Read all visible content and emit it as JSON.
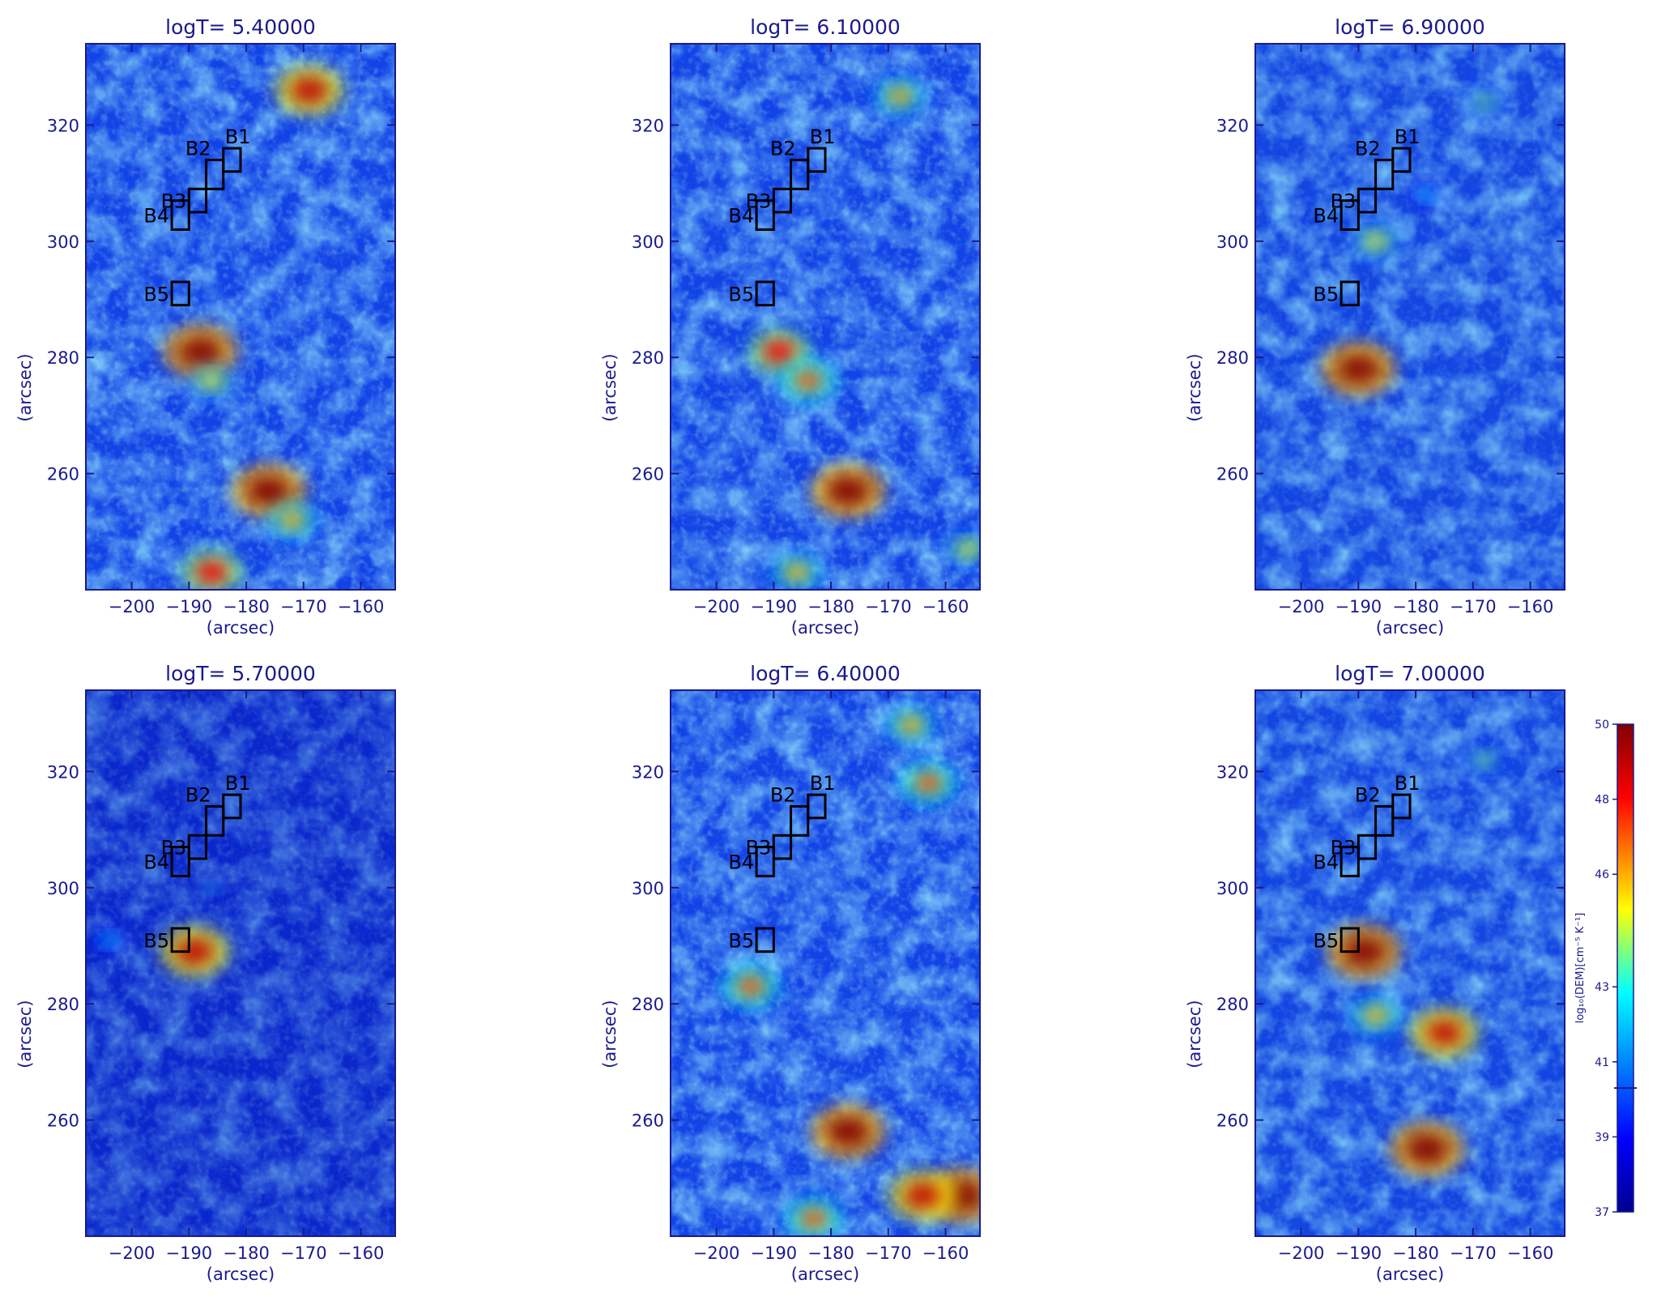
{
  "chart_data": [
    {
      "type": "heatmap",
      "title": "logT= 5.40000",
      "xlabel": "(arcsec)",
      "ylabel": "(arcsec)",
      "xlim": [
        -208,
        -154
      ],
      "ylim": [
        240,
        334
      ],
      "xticks": [
        -200,
        -190,
        -180,
        -170,
        -160
      ],
      "yticks": [
        260,
        280,
        300,
        320
      ],
      "level": "high",
      "hotspots": [
        {
          "x": -188,
          "y": 281,
          "value": 50
        },
        {
          "x": -176,
          "y": 257,
          "value": 50
        },
        {
          "x": -169,
          "y": 326,
          "value": 49
        },
        {
          "x": -186,
          "y": 243,
          "value": 48
        },
        {
          "x": -172,
          "y": 252,
          "value": 46
        },
        {
          "x": -186,
          "y": 276,
          "value": 45
        }
      ]
    },
    {
      "type": "heatmap",
      "title": "logT= 6.10000",
      "xlabel": "(arcsec)",
      "ylabel": "(arcsec)",
      "xlim": [
        -208,
        -154
      ],
      "ylim": [
        240,
        334
      ],
      "xticks": [
        -200,
        -190,
        -180,
        -170,
        -160
      ],
      "yticks": [
        260,
        280,
        300,
        320
      ],
      "level": "high",
      "hotspots": [
        {
          "x": -177,
          "y": 257,
          "value": 50
        },
        {
          "x": -189,
          "y": 281,
          "value": 48
        },
        {
          "x": -184,
          "y": 276,
          "value": 47
        },
        {
          "x": -168,
          "y": 325,
          "value": 46
        },
        {
          "x": -186,
          "y": 243,
          "value": 46
        },
        {
          "x": -156,
          "y": 247,
          "value": 45
        }
      ]
    },
    {
      "type": "heatmap",
      "title": "logT= 6.90000",
      "xlabel": "(arcsec)",
      "ylabel": "(arcsec)",
      "xlim": [
        -208,
        -154
      ],
      "ylim": [
        240,
        334
      ],
      "xticks": [
        -200,
        -190,
        -180,
        -170,
        -160
      ],
      "yticks": [
        260,
        280,
        300,
        320
      ],
      "level": "mid",
      "hotspots": [
        {
          "x": -190,
          "y": 278,
          "value": 50
        },
        {
          "x": -187,
          "y": 300,
          "value": 45
        },
        {
          "x": -168,
          "y": 324,
          "value": 44
        },
        {
          "x": -178,
          "y": 308,
          "value": 43
        }
      ]
    },
    {
      "type": "heatmap",
      "title": "logT= 5.70000",
      "xlabel": "(arcsec)",
      "ylabel": "(arcsec)",
      "xlim": [
        -208,
        -154
      ],
      "ylim": [
        240,
        334
      ],
      "xticks": [
        -200,
        -190,
        -180,
        -170,
        -160
      ],
      "yticks": [
        260,
        280,
        300,
        320
      ],
      "level": "low",
      "hotspots": [
        {
          "x": -189,
          "y": 289,
          "value": 49
        },
        {
          "x": -204,
          "y": 291,
          "value": 43
        },
        {
          "x": -186,
          "y": 300,
          "value": 42
        }
      ]
    },
    {
      "type": "heatmap",
      "title": "logT= 6.40000",
      "xlabel": "(arcsec)",
      "ylabel": "(arcsec)",
      "xlim": [
        -208,
        -154
      ],
      "ylim": [
        240,
        334
      ],
      "xticks": [
        -200,
        -190,
        -180,
        -170,
        -160
      ],
      "yticks": [
        260,
        280,
        300,
        320
      ],
      "level": "high",
      "hotspots": [
        {
          "x": -177,
          "y": 258,
          "value": 50
        },
        {
          "x": -157,
          "y": 247,
          "value": 50
        },
        {
          "x": -164,
          "y": 247,
          "value": 49
        },
        {
          "x": -194,
          "y": 283,
          "value": 47
        },
        {
          "x": -183,
          "y": 243,
          "value": 47
        },
        {
          "x": -166,
          "y": 328,
          "value": 46
        },
        {
          "x": -163,
          "y": 318,
          "value": 47
        }
      ]
    },
    {
      "type": "heatmap",
      "title": "logT= 7.00000",
      "xlabel": "(arcsec)",
      "ylabel": "(arcsec)",
      "xlim": [
        -208,
        -154
      ],
      "ylim": [
        240,
        334
      ],
      "xticks": [
        -200,
        -190,
        -180,
        -170,
        -160
      ],
      "yticks": [
        260,
        280,
        300,
        320
      ],
      "level": "mid",
      "hotspots": [
        {
          "x": -178,
          "y": 255,
          "value": 50
        },
        {
          "x": -189,
          "y": 289,
          "value": 50
        },
        {
          "x": -175,
          "y": 275,
          "value": 49
        },
        {
          "x": -187,
          "y": 278,
          "value": 46
        },
        {
          "x": -168,
          "y": 322,
          "value": 44
        }
      ]
    }
  ],
  "boxes": [
    {
      "label": "B1",
      "x0": -184,
      "x1": -181,
      "y0": 312,
      "y1": 316
    },
    {
      "label": "B2",
      "x0": -187,
      "x1": -184,
      "y0": 309,
      "y1": 314
    },
    {
      "label": "B3",
      "x0": -190,
      "x1": -187,
      "y0": 305,
      "y1": 309
    },
    {
      "label": "B4",
      "x0": -193,
      "x1": -190,
      "y0": 302,
      "y1": 307
    },
    {
      "label": "B5",
      "x0": -193,
      "x1": -190,
      "y0": 289,
      "y1": 293
    }
  ],
  "colorbar": {
    "label": "log₁₀(DEM)[cm⁻⁵ K⁻¹]",
    "range": [
      37,
      50
    ],
    "ticks": [
      37,
      39,
      41,
      43,
      46,
      48,
      50
    ],
    "marker": 40.3,
    "colors": [
      "#00008f",
      "#0000ff",
      "#00ffff",
      "#ffff00",
      "#ff0000",
      "#800000"
    ]
  }
}
